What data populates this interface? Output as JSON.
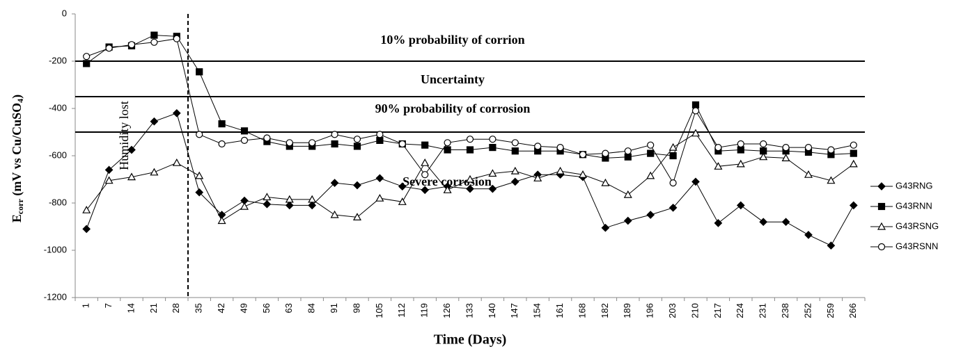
{
  "chart_data": {
    "type": "line",
    "y_label_parts": [
      "E",
      "corr",
      " (mV vs Cu/CuSO",
      "4",
      ")"
    ],
    "x_label": "Time (Days)",
    "annotations": [
      "10% probability of corrion",
      "Uncertainty",
      "90% probability of corrosion",
      "Severe corrosion",
      "Humidity lost"
    ],
    "hlines": [
      -200,
      -350,
      -500
    ],
    "categories": [
      "1",
      "7",
      "14",
      "21",
      "28",
      "35",
      "42",
      "49",
      "56",
      "63",
      "84",
      "91",
      "98",
      "105",
      "112",
      "119",
      "126",
      "133",
      "140",
      "147",
      "154",
      "161",
      "168",
      "182",
      "189",
      "196",
      "203",
      "210",
      "217",
      "224",
      "231",
      "238",
      "252",
      "259",
      "266"
    ],
    "series": [
      {
        "name": "G43RNG",
        "color": "#000000",
        "marker": "diamond",
        "values": [
          -910,
          -660,
          -575,
          -455,
          -420,
          -755,
          -850,
          -790,
          -805,
          -810,
          -810,
          -715,
          -725,
          -695,
          -730,
          -745,
          -730,
          -740,
          -740,
          -710,
          -680,
          -680,
          -690,
          -905,
          -875,
          -850,
          -820,
          -710,
          -885,
          -810,
          -880,
          -880,
          -935,
          -980,
          -810
        ]
      },
      {
        "name": "G43RNN",
        "color": "#000000",
        "marker": "square",
        "values": [
          -210,
          -140,
          -135,
          -90,
          -95,
          -245,
          -465,
          -495,
          -540,
          -560,
          -560,
          -550,
          -560,
          -535,
          -550,
          -555,
          -575,
          -575,
          -565,
          -580,
          -580,
          -580,
          -595,
          -610,
          -605,
          -590,
          -600,
          -385,
          -580,
          -575,
          -580,
          -580,
          -585,
          -595,
          -590
        ]
      },
      {
        "name": "G43RSNG",
        "color": "#000000",
        "marker": "triangle",
        "values": [
          -830,
          -705,
          -690,
          -670,
          -630,
          -685,
          -875,
          -815,
          -775,
          -785,
          -785,
          -850,
          -860,
          -780,
          -795,
          -630,
          -745,
          -700,
          -675,
          -665,
          -695,
          -665,
          -680,
          -715,
          -765,
          -685,
          -565,
          -505,
          -645,
          -635,
          -605,
          -610,
          -680,
          -705,
          -635
        ]
      },
      {
        "name": "G43RSNN",
        "color": "#000000",
        "marker": "circle",
        "values": [
          -180,
          -145,
          -130,
          -120,
          -105,
          -510,
          -550,
          -535,
          -525,
          -545,
          -545,
          -510,
          -530,
          -510,
          -550,
          -680,
          -545,
          -530,
          -530,
          -545,
          -560,
          -565,
          -595,
          -590,
          -580,
          -555,
          -715,
          -410,
          -565,
          -550,
          -550,
          -565,
          -565,
          -575,
          -555
        ]
      }
    ],
    "ylim": [
      -1200,
      0
    ],
    "yticks": [
      -1200,
      -1000,
      -800,
      -600,
      -400,
      -200,
      0
    ]
  }
}
